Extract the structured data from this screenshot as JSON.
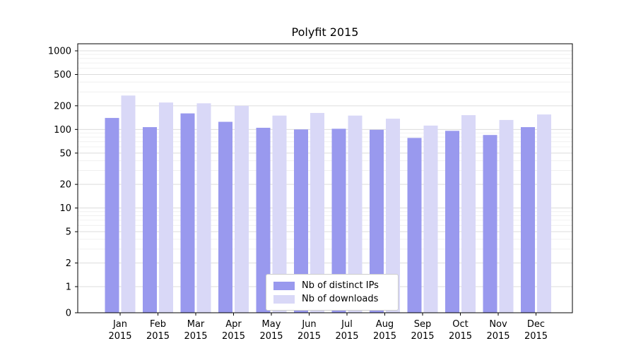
{
  "chart_data": {
    "type": "bar",
    "title": "Polyfit 2015",
    "yscale": "symlog",
    "ylim": [
      0,
      1300
    ],
    "grid": true,
    "legend_position": "lower center",
    "categories": [
      "Jan 2015",
      "Feb 2015",
      "Mar 2015",
      "Apr 2015",
      "May 2015",
      "Jun 2015",
      "Jul 2015",
      "Aug 2015",
      "Sep 2015",
      "Oct 2015",
      "Nov 2015",
      "Dec 2015"
    ],
    "yticks": [
      0,
      1,
      2,
      5,
      10,
      20,
      50,
      100,
      200,
      500,
      1000
    ],
    "series": [
      {
        "name": "Nb of distinct IPs",
        "color": "#9999ee",
        "values": [
          140,
          107,
          160,
          125,
          105,
          100,
          102,
          99,
          78,
          96,
          85,
          107
        ]
      },
      {
        "name": "Nb of downloads",
        "color": "#d9d8f7",
        "values": [
          270,
          220,
          215,
          200,
          150,
          162,
          150,
          137,
          112,
          152,
          132,
          155
        ]
      }
    ],
    "colors": {
      "major_grid": "#dcdcdc",
      "minor_grid": "#f0f0f0",
      "spine": "#000000"
    }
  }
}
